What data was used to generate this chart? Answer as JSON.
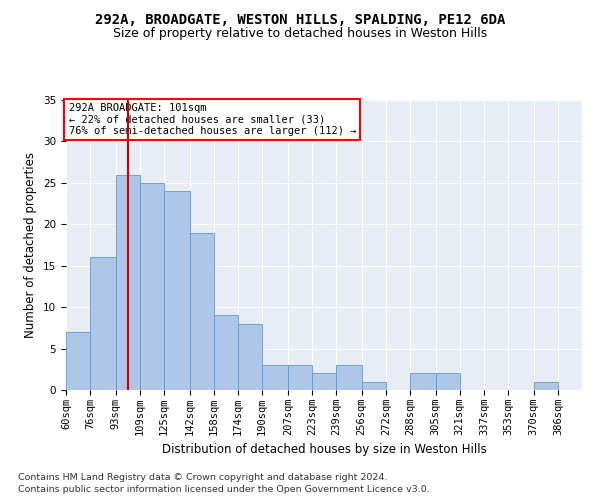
{
  "title1": "292A, BROADGATE, WESTON HILLS, SPALDING, PE12 6DA",
  "title2": "Size of property relative to detached houses in Weston Hills",
  "xlabel": "Distribution of detached houses by size in Weston Hills",
  "ylabel": "Number of detached properties",
  "footnote1": "Contains HM Land Registry data © Crown copyright and database right 2024.",
  "footnote2": "Contains public sector information licensed under the Open Government Licence v3.0.",
  "annotation_line1": "292A BROADGATE: 101sqm",
  "annotation_line2": "← 22% of detached houses are smaller (33)",
  "annotation_line3": "76% of semi-detached houses are larger (112) →",
  "bar_color": "#aec6e8",
  "bar_edge_color": "#5b9bd5",
  "vline_color": "#cc0000",
  "vline_x": 101,
  "categories": [
    "60sqm",
    "76sqm",
    "93sqm",
    "109sqm",
    "125sqm",
    "142sqm",
    "158sqm",
    "174sqm",
    "190sqm",
    "207sqm",
    "223sqm",
    "239sqm",
    "256sqm",
    "272sqm",
    "288sqm",
    "305sqm",
    "321sqm",
    "337sqm",
    "353sqm",
    "370sqm",
    "386sqm"
  ],
  "bin_edges": [
    60,
    76,
    93,
    109,
    125,
    142,
    158,
    174,
    190,
    207,
    223,
    239,
    256,
    272,
    288,
    305,
    321,
    337,
    353,
    370,
    386,
    402
  ],
  "values": [
    7,
    16,
    26,
    25,
    24,
    19,
    9,
    8,
    3,
    3,
    2,
    3,
    1,
    0,
    2,
    2,
    0,
    0,
    0,
    1,
    0
  ],
  "ylim": [
    0,
    35
  ],
  "yticks": [
    0,
    5,
    10,
    15,
    20,
    25,
    30,
    35
  ],
  "background_color": "#e8edf5",
  "grid_color": "#ffffff",
  "title1_fontsize": 10,
  "title2_fontsize": 9,
  "axis_label_fontsize": 8.5,
  "tick_fontsize": 7.5,
  "annotation_fontsize": 7.5,
  "footnote_fontsize": 6.8
}
